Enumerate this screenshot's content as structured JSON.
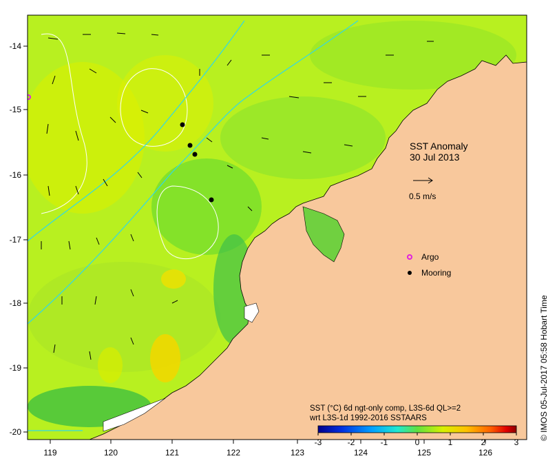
{
  "map": {
    "title_line1": "SST Anomaly",
    "title_line2": "30 Jul 2013",
    "vector_scale_label": "0.5 m/s",
    "x_ticks": [
      "119",
      "120",
      "121",
      "122",
      "123",
      "124",
      "125",
      "126"
    ],
    "y_ticks": [
      "-14",
      "-15",
      "-16",
      "-17",
      "-18",
      "-19",
      "-20"
    ],
    "legend": {
      "argo_label": "Argo",
      "mooring_label": "Mooring",
      "argo_color": "#e020e0",
      "mooring_color": "#000000"
    },
    "colorbar": {
      "caption_line1": "SST (°C) 6d ngt-only comp, L3S-6d QL>=2",
      "caption_line2": "wrt L3S-1d 1992-2016 SSTAARS",
      "tick_labels": [
        "-3",
        "-2",
        "-1",
        "0",
        "1",
        "2",
        "3"
      ],
      "colors": [
        "#00008c",
        "#0030e0",
        "#00a0ff",
        "#20e8d0",
        "#60e040",
        "#d8f000",
        "#ffc000",
        "#ff6000",
        "#e00000",
        "#8c0000"
      ]
    },
    "credit": "IMOS 05-Jul-2017 05:58 Hobart Time",
    "copyright_symbol": "©",
    "land_color": "#f8c89c",
    "ocean_color": "#b8f020"
  }
}
